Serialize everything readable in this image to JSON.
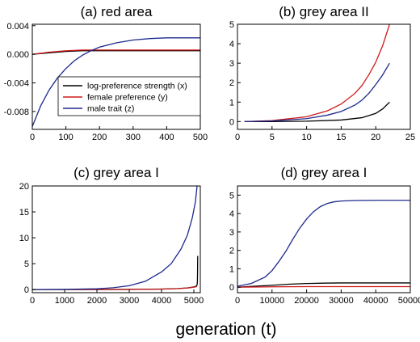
{
  "figure": {
    "xlabel": "generation (t)"
  },
  "colors": {
    "x": "#000000",
    "y": "#d01a1a",
    "z": "#1c2a8c"
  },
  "chart_data": [
    {
      "type": "line",
      "title": "(a) red area",
      "xlim": [
        0,
        500
      ],
      "ylim": [
        -0.0105,
        0.0042
      ],
      "xticks": [
        0,
        100,
        200,
        300,
        400,
        500
      ],
      "xtick_labels": [
        "0",
        "100",
        "200",
        "300",
        "400",
        "500"
      ],
      "yticks": [
        0.004,
        0.0,
        -0.004,
        -0.008
      ],
      "ytick_labels": [
        "0.004",
        "0.000",
        "-0.004",
        "-0.008"
      ],
      "legend": {
        "position": "bottom-right",
        "entries": [
          {
            "label": "log-preference strength (x)",
            "color": "#000000"
          },
          {
            "label": "female preference (y)",
            "color": "#d01a1a"
          },
          {
            "label": "male trait (z)",
            "color": "#1c2a8c"
          }
        ]
      },
      "series": [
        {
          "key": "x",
          "color": "#000000",
          "x": [
            0,
            50,
            100,
            150,
            200,
            300,
            400,
            500
          ],
          "y": [
            0.0,
            0.0002,
            0.0004,
            0.0005,
            0.0005,
            0.0005,
            0.0005,
            0.0005
          ]
        },
        {
          "key": "y",
          "color": "#d01a1a",
          "x": [
            0,
            50,
            100,
            150,
            200,
            300,
            400,
            500
          ],
          "y": [
            0.0,
            0.0003,
            0.0005,
            0.0006,
            0.0006,
            0.0006,
            0.0006,
            0.0006
          ]
        },
        {
          "key": "z",
          "color": "#1c2a8c",
          "x": [
            0,
            25,
            50,
            75,
            100,
            125,
            150,
            175,
            200,
            250,
            300,
            350,
            400,
            450,
            500
          ],
          "y": [
            -0.0101,
            -0.0072,
            -0.005,
            -0.0033,
            -0.002,
            -0.0009,
            -0.0001,
            0.0005,
            0.001,
            0.0016,
            0.002,
            0.0022,
            0.0023,
            0.0023,
            0.0023
          ]
        }
      ]
    },
    {
      "type": "line",
      "title": "(b) grey area II",
      "xlim": [
        0,
        25
      ],
      "ylim": [
        -0.4,
        5
      ],
      "xticks": [
        0,
        5,
        10,
        15,
        20,
        25
      ],
      "xtick_labels": [
        "0",
        "5",
        "10",
        "15",
        "20",
        "25"
      ],
      "yticks": [
        0,
        1,
        2,
        3,
        4,
        5
      ],
      "ytick_labels": [
        "0",
        "1",
        "2",
        "3",
        "4",
        "5"
      ],
      "series": [
        {
          "key": "x",
          "color": "#000000",
          "x": [
            1,
            5,
            10,
            15,
            18,
            20,
            21,
            22
          ],
          "y": [
            0.0,
            0.0,
            0.02,
            0.08,
            0.2,
            0.42,
            0.65,
            1.0
          ]
        },
        {
          "key": "y",
          "color": "#d01a1a",
          "x": [
            1,
            5,
            10,
            13,
            15,
            17,
            18,
            19,
            20,
            21,
            22
          ],
          "y": [
            0.0,
            0.05,
            0.25,
            0.55,
            0.9,
            1.45,
            1.85,
            2.4,
            3.05,
            3.9,
            5.0
          ]
        },
        {
          "key": "z",
          "color": "#1c2a8c",
          "x": [
            1,
            5,
            10,
            13,
            15,
            17,
            18,
            19,
            20,
            21,
            22
          ],
          "y": [
            0.0,
            0.03,
            0.15,
            0.33,
            0.52,
            0.85,
            1.1,
            1.45,
            1.9,
            2.4,
            3.0
          ]
        }
      ]
    },
    {
      "type": "line",
      "title": "(c) grey area I",
      "xlim": [
        0,
        5200
      ],
      "ylim": [
        -0.6,
        20
      ],
      "xticks": [
        0,
        1000,
        2000,
        3000,
        4000,
        5000
      ],
      "xtick_labels": [
        "0",
        "1000",
        "2000",
        "3000",
        "4000",
        "5000"
      ],
      "yticks": [
        0,
        5,
        10,
        15,
        20
      ],
      "ytick_labels": [
        "0",
        "5",
        "10",
        "15",
        "20"
      ],
      "series": [
        {
          "key": "x",
          "color": "#000000",
          "x": [
            0,
            1000,
            2000,
            3000,
            4000,
            4500,
            4800,
            5000,
            5080,
            5100,
            5110,
            5115,
            5120
          ],
          "y": [
            0.0,
            0.0,
            0.01,
            0.03,
            0.1,
            0.2,
            0.32,
            0.5,
            0.7,
            0.9,
            1.5,
            3.5,
            6.5
          ]
        },
        {
          "key": "y",
          "color": "#d01a1a",
          "x": [
            0,
            2000,
            3000,
            4000,
            4500,
            4800,
            5000,
            5100
          ],
          "y": [
            0.0,
            0.0,
            0.02,
            0.08,
            0.18,
            0.3,
            0.45,
            0.6
          ]
        },
        {
          "key": "z",
          "color": "#1c2a8c",
          "x": [
            0,
            1000,
            2000,
            2500,
            3000,
            3500,
            4000,
            4300,
            4600,
            4800,
            4950,
            5050,
            5100
          ],
          "y": [
            0.0,
            0.03,
            0.15,
            0.35,
            0.75,
            1.6,
            3.4,
            5.0,
            7.8,
            10.5,
            13.8,
            17.0,
            20.0
          ]
        }
      ]
    },
    {
      "type": "line",
      "title": "(d) grey area I",
      "xlim": [
        0,
        50000
      ],
      "ylim": [
        -0.3,
        5.5
      ],
      "xticks": [
        0,
        10000,
        20000,
        30000,
        40000,
        50000
      ],
      "xtick_labels": [
        "0",
        "10000",
        "20000",
        "30000",
        "40000",
        "50000"
      ],
      "yticks": [
        0,
        1,
        2,
        3,
        4,
        5
      ],
      "ytick_labels": [
        "0",
        "1",
        "2",
        "3",
        "4",
        "5"
      ],
      "series": [
        {
          "key": "x",
          "color": "#000000",
          "x": [
            0,
            5000,
            10000,
            15000,
            20000,
            25000,
            30000,
            40000,
            50000
          ],
          "y": [
            0.0,
            0.05,
            0.1,
            0.16,
            0.2,
            0.22,
            0.23,
            0.23,
            0.23
          ]
        },
        {
          "key": "y",
          "color": "#d01a1a",
          "x": [
            0,
            10000,
            20000,
            30000,
            40000,
            50000
          ],
          "y": [
            0.0,
            0.02,
            0.03,
            0.03,
            0.03,
            0.03
          ]
        },
        {
          "key": "z",
          "color": "#1c2a8c",
          "x": [
            0,
            4000,
            8000,
            10000,
            12000,
            14000,
            16000,
            18000,
            20000,
            22000,
            24000,
            26000,
            28000,
            30000,
            34000,
            40000,
            50000
          ],
          "y": [
            0.05,
            0.2,
            0.55,
            0.9,
            1.4,
            1.95,
            2.6,
            3.2,
            3.7,
            4.1,
            4.38,
            4.55,
            4.64,
            4.68,
            4.71,
            4.72,
            4.72
          ]
        }
      ]
    }
  ]
}
